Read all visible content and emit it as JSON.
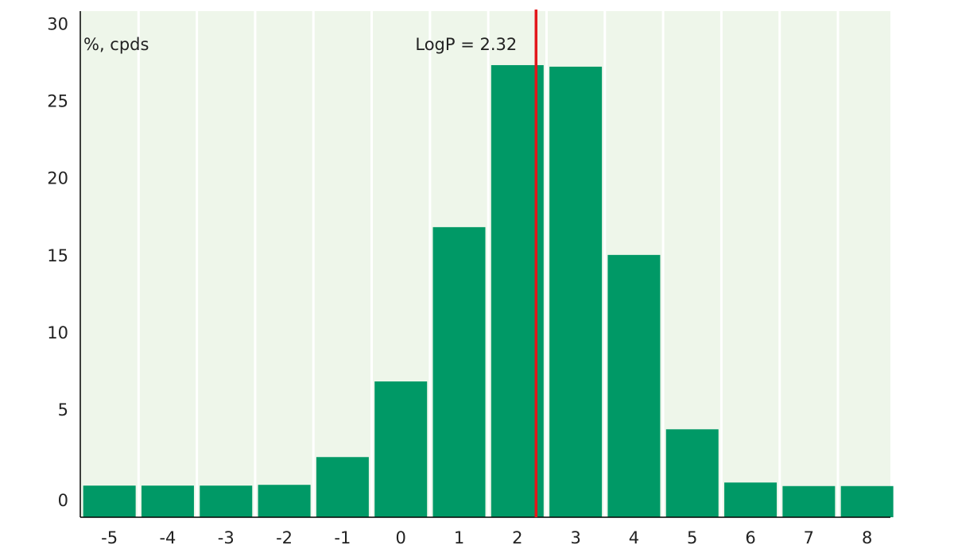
{
  "chart_data": {
    "type": "bar",
    "title": "",
    "xlabel": "",
    "ylabel": "%, cpds",
    "categories": [
      "-5",
      "-4",
      "-3",
      "-2",
      "-1",
      "0",
      "1",
      "2",
      "3",
      "4",
      "5",
      "6",
      "7",
      "8"
    ],
    "x": [
      -5,
      -4,
      -3,
      -2,
      -1,
      0,
      1,
      2,
      3,
      4,
      5,
      6,
      7,
      8
    ],
    "values": [
      0.05,
      0.05,
      0.05,
      0.1,
      1.9,
      6.8,
      16.8,
      27.3,
      27.2,
      15.0,
      3.7,
      0.25,
      0.02,
      0.02
    ],
    "ylim": [
      -2,
      30.8
    ],
    "yticks": [
      0,
      5,
      10,
      15,
      20,
      25,
      30
    ],
    "xlim": [
      -5.5,
      8.4
    ],
    "grid": "vertical",
    "reference_line": {
      "x": 2.32,
      "label": "LogP = 2.32",
      "color": "#e3171b"
    },
    "colors": {
      "bar": "#009966",
      "background": "#eef6ea",
      "grid": "#ffffff",
      "axis": "#000000"
    }
  }
}
